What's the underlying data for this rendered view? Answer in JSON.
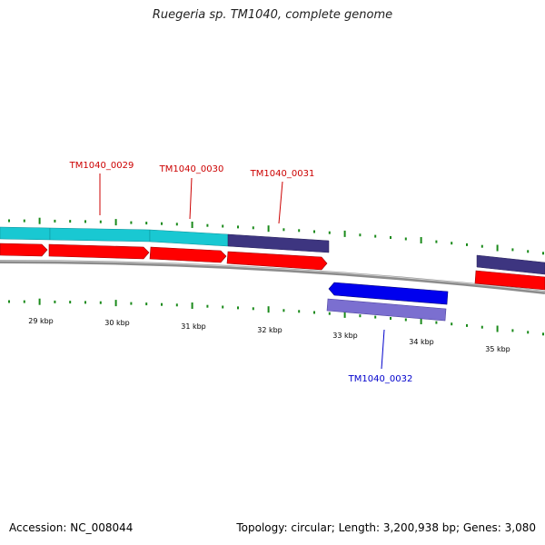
{
  "title": "Ruegeria sp. TM1040, complete genome",
  "footer": {
    "accession": "Accession: NC_008044",
    "summary": "Topology: circular; Length: 3,200,938 bp; Genes: 3,080"
  },
  "colors": {
    "forward_label": "#cc0000",
    "reverse_label": "#0000cc",
    "tick": "#1a8a1a",
    "backbone": "#8c8c8c",
    "cds_forward": "#ff0000",
    "gene_cyan": "#19c8d2",
    "gene_navy": "#3d3580",
    "cds_reverse": "#0000ee",
    "gene_lavender": "#7b6fd0"
  },
  "genes": [
    {
      "label": "TM1040_0029",
      "strand": "forward"
    },
    {
      "label": "TM1040_0030",
      "strand": "forward"
    },
    {
      "label": "TM1040_0031",
      "strand": "forward"
    },
    {
      "label": "TM1040_0032",
      "strand": "reverse"
    }
  ],
  "scale_labels": [
    "29 kbp",
    "30 kbp",
    "31 kbp",
    "32 kbp",
    "33 kbp",
    "34 kbp",
    "35 kbp"
  ]
}
